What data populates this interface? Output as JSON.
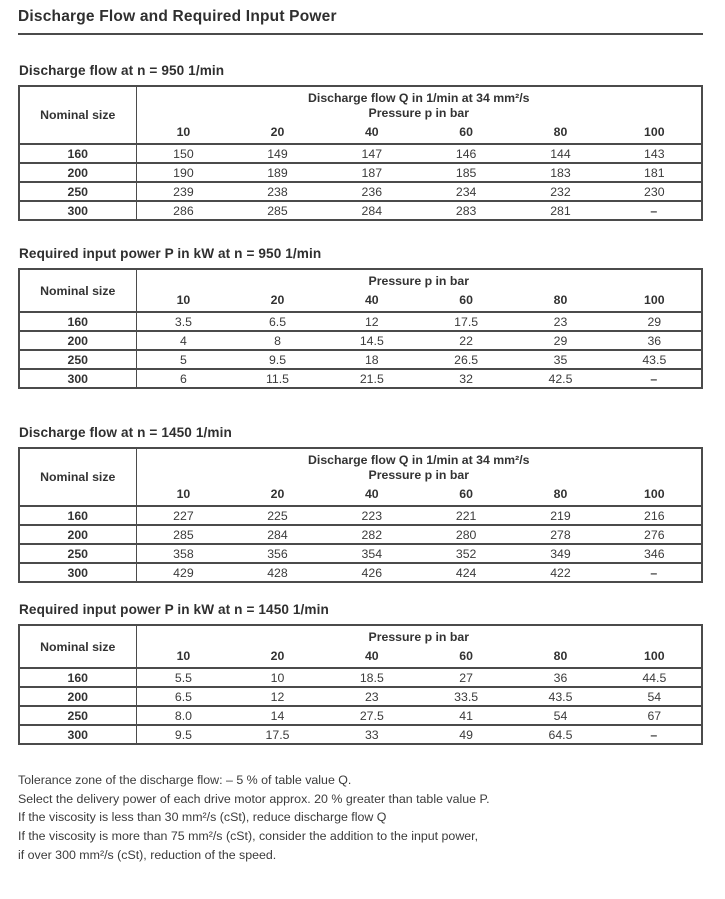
{
  "page": {
    "title": "Discharge Flow and Required Input Power"
  },
  "tables": [
    {
      "heading": "Discharge flow at n = 950 1/min",
      "corner": "Nominal size",
      "header_lines": [
        "Discharge flow Q in 1/min at 34 mm²/s",
        "Pressure p in bar"
      ],
      "pressures": [
        "10",
        "20",
        "40",
        "60",
        "80",
        "100"
      ],
      "rows": [
        {
          "size": "160",
          "values": [
            "150",
            "149",
            "147",
            "146",
            "144",
            "143"
          ]
        },
        {
          "size": "200",
          "values": [
            "190",
            "189",
            "187",
            "185",
            "183",
            "181"
          ]
        },
        {
          "size": "250",
          "values": [
            "239",
            "238",
            "236",
            "234",
            "232",
            "230"
          ]
        },
        {
          "size": "300",
          "values": [
            "286",
            "285",
            "284",
            "283",
            "281",
            "–"
          ]
        }
      ]
    },
    {
      "heading": "Required input power P in kW at n = 950 1/min",
      "corner": "Nominal size",
      "header_lines": [
        "Pressure p in bar"
      ],
      "pressures": [
        "10",
        "20",
        "40",
        "60",
        "80",
        "100"
      ],
      "rows": [
        {
          "size": "160",
          "values": [
            "3.5",
            "6.5",
            "12",
            "17.5",
            "23",
            "29"
          ]
        },
        {
          "size": "200",
          "values": [
            "4",
            "8",
            "14.5",
            "22",
            "29",
            "36"
          ]
        },
        {
          "size": "250",
          "values": [
            "5",
            "9.5",
            "18",
            "26.5",
            "35",
            "43.5"
          ]
        },
        {
          "size": "300",
          "values": [
            "6",
            "11.5",
            "21.5",
            "32",
            "42.5",
            "–"
          ]
        }
      ]
    },
    {
      "heading": "Discharge flow at n = 1450 1/min",
      "corner": "Nominal size",
      "header_lines": [
        "Discharge flow Q in 1/min at 34 mm²/s",
        "Pressure p in bar"
      ],
      "pressures": [
        "10",
        "20",
        "40",
        "60",
        "80",
        "100"
      ],
      "rows": [
        {
          "size": "160",
          "values": [
            "227",
            "225",
            "223",
            "221",
            "219",
            "216"
          ]
        },
        {
          "size": "200",
          "values": [
            "285",
            "284",
            "282",
            "280",
            "278",
            "276"
          ]
        },
        {
          "size": "250",
          "values": [
            "358",
            "356",
            "354",
            "352",
            "349",
            "346"
          ]
        },
        {
          "size": "300",
          "values": [
            "429",
            "428",
            "426",
            "424",
            "422",
            "–"
          ]
        }
      ]
    },
    {
      "heading": "Required input power P in kW at n = 1450 1/min",
      "corner": "Nominal size",
      "header_lines": [
        "Pressure p in bar"
      ],
      "pressures": [
        "10",
        "20",
        "40",
        "60",
        "80",
        "100"
      ],
      "rows": [
        {
          "size": "160",
          "values": [
            "5.5",
            "10",
            "18.5",
            "27",
            "36",
            "44.5"
          ]
        },
        {
          "size": "200",
          "values": [
            "6.5",
            "12",
            "23",
            "33.5",
            "43.5",
            "54"
          ]
        },
        {
          "size": "250",
          "values": [
            "8.0",
            "14",
            "27.5",
            "41",
            "54",
            "67"
          ]
        },
        {
          "size": "300",
          "values": [
            "9.5",
            "17.5",
            "33",
            "49",
            "64.5",
            "–"
          ]
        }
      ]
    }
  ],
  "footnotes": [
    "Tolerance zone of the discharge flow: – 5 % of table value Q.",
    "Select the delivery power of each drive motor approx. 20 % greater than table value P.",
    "If the viscosity is less than 30 mm²/s (cSt), reduce discharge flow Q",
    "If the viscosity is more than 75 mm²/s (cSt), consider the addition to the input power,",
    "if over 300 mm²/s (cSt), reduction of the speed."
  ]
}
